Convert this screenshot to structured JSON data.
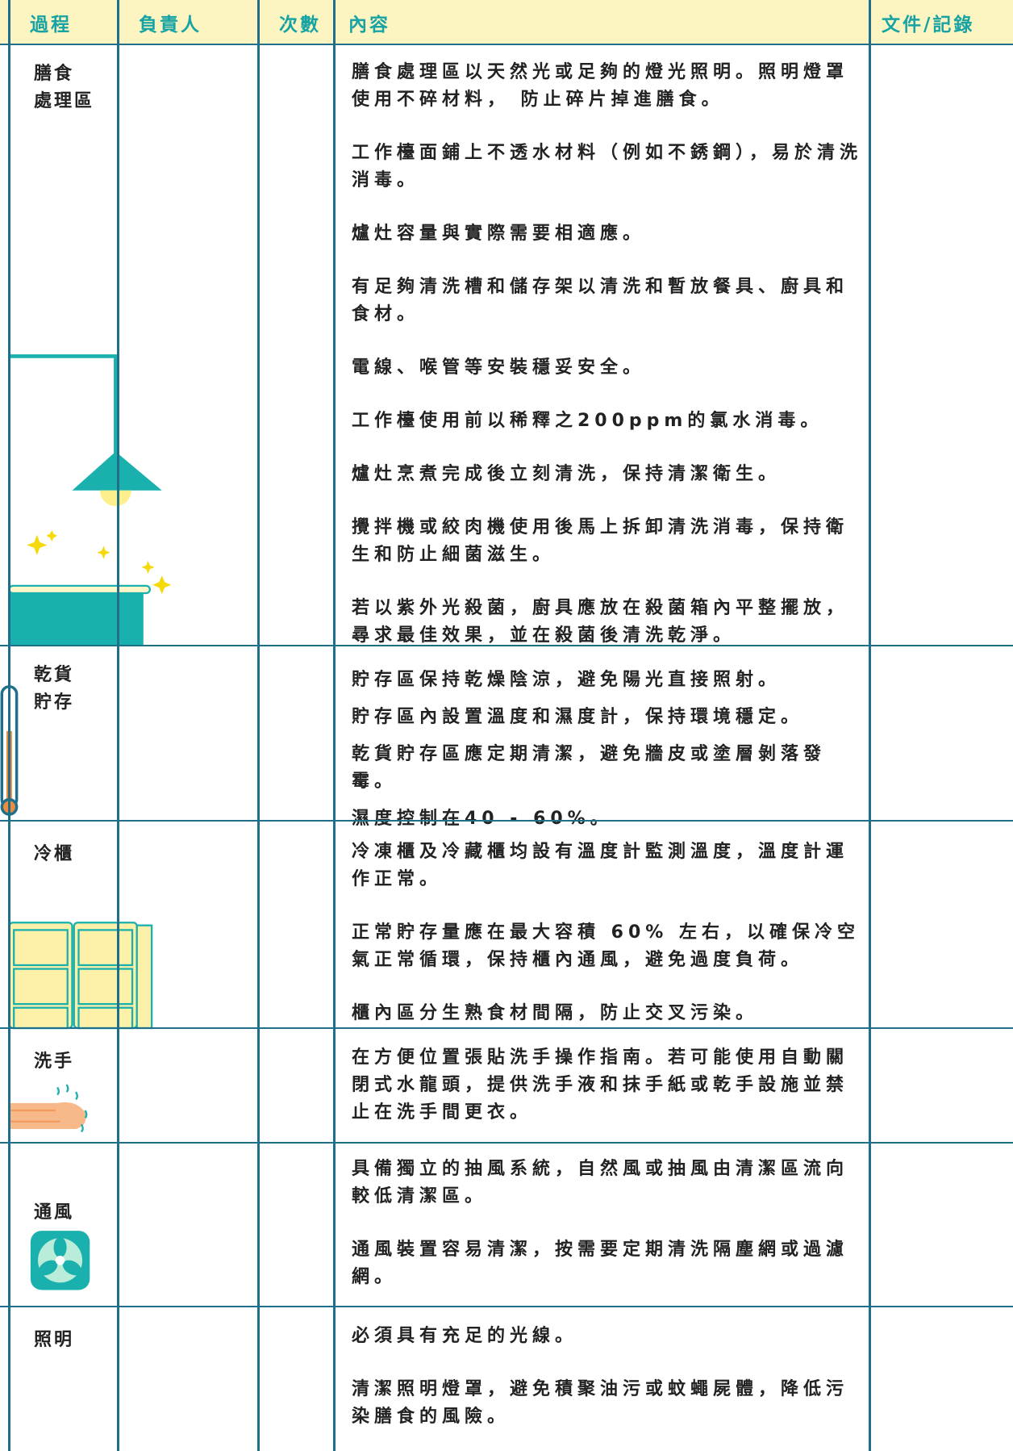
{
  "header": [
    "過程",
    "負責人",
    "次數",
    "內容",
    "文件/記錄"
  ],
  "rows": [
    {
      "process": [
        "膳食",
        "處理區"
      ],
      "content": [
        "膳食處理區以天然光或足夠的燈光照明。照明燈罩使用不碎材料， 防止碎片掉進膳食。",
        "工作檯面鋪上不透水材料（例如不銹鋼），易於清洗消毒。",
        "爐灶容量與實際需要相適應。",
        "有足夠清洗槽和儲存架以清洗和暫放餐具、廚具和食材。",
        "電線、喉管等安裝穩妥安全。",
        "工作檯使用前以稀釋之200ppm的氯水消毒。",
        "爐灶烹煮完成後立刻清洗，保持清潔衛生。",
        "攪拌機或絞肉機使用後馬上拆卸清洗消毒，保持衛生和防止細菌滋生。",
        "若以紫外光殺菌，廚具應放在殺菌箱內平整擺放，尋求最佳效果，並在殺菌後清洗乾淨。"
      ]
    },
    {
      "process": [
        "乾貨",
        "貯存"
      ],
      "content": [
        "貯存區保持乾燥陰涼，避免陽光直接照射。",
        "貯存區內設置溫度和濕度計，保持環境穩定。",
        "乾貨貯存區應定期清潔，避免牆皮或塗層剝落發霉。",
        "濕度控制在40 - 60%。"
      ]
    },
    {
      "process": [
        "冷櫃"
      ],
      "content": [
        "冷凍櫃及冷藏櫃均設有溫度計監測溫度，溫度計運作正常。",
        "正常貯存量應在最大容積 60% 左右，以確保冷空氣正常循環，保持櫃內通風，避免過度負荷。",
        "櫃內區分生熟食材間隔，防止交叉污染。"
      ]
    },
    {
      "process": [
        "洗手"
      ],
      "content": [
        "在方便位置張貼洗手操作指南。若可能使用自動關閉式水龍頭，提供洗手液和抹手紙或乾手設施並禁止在洗手間更衣。"
      ]
    },
    {
      "process": [
        "通風"
      ],
      "content": [
        "具備獨立的抽風系統，自然風或抽風由清潔區流向較低清潔區。",
        "通風裝置容易清潔，按需要定期清洗隔塵網或過濾網。"
      ]
    },
    {
      "process": [
        "照明"
      ],
      "content": [
        "必須具有充足的光線。",
        "清潔照明燈罩，避免積聚油污或蚊蠅屍體，降低污染膳食的風險。"
      ]
    }
  ]
}
